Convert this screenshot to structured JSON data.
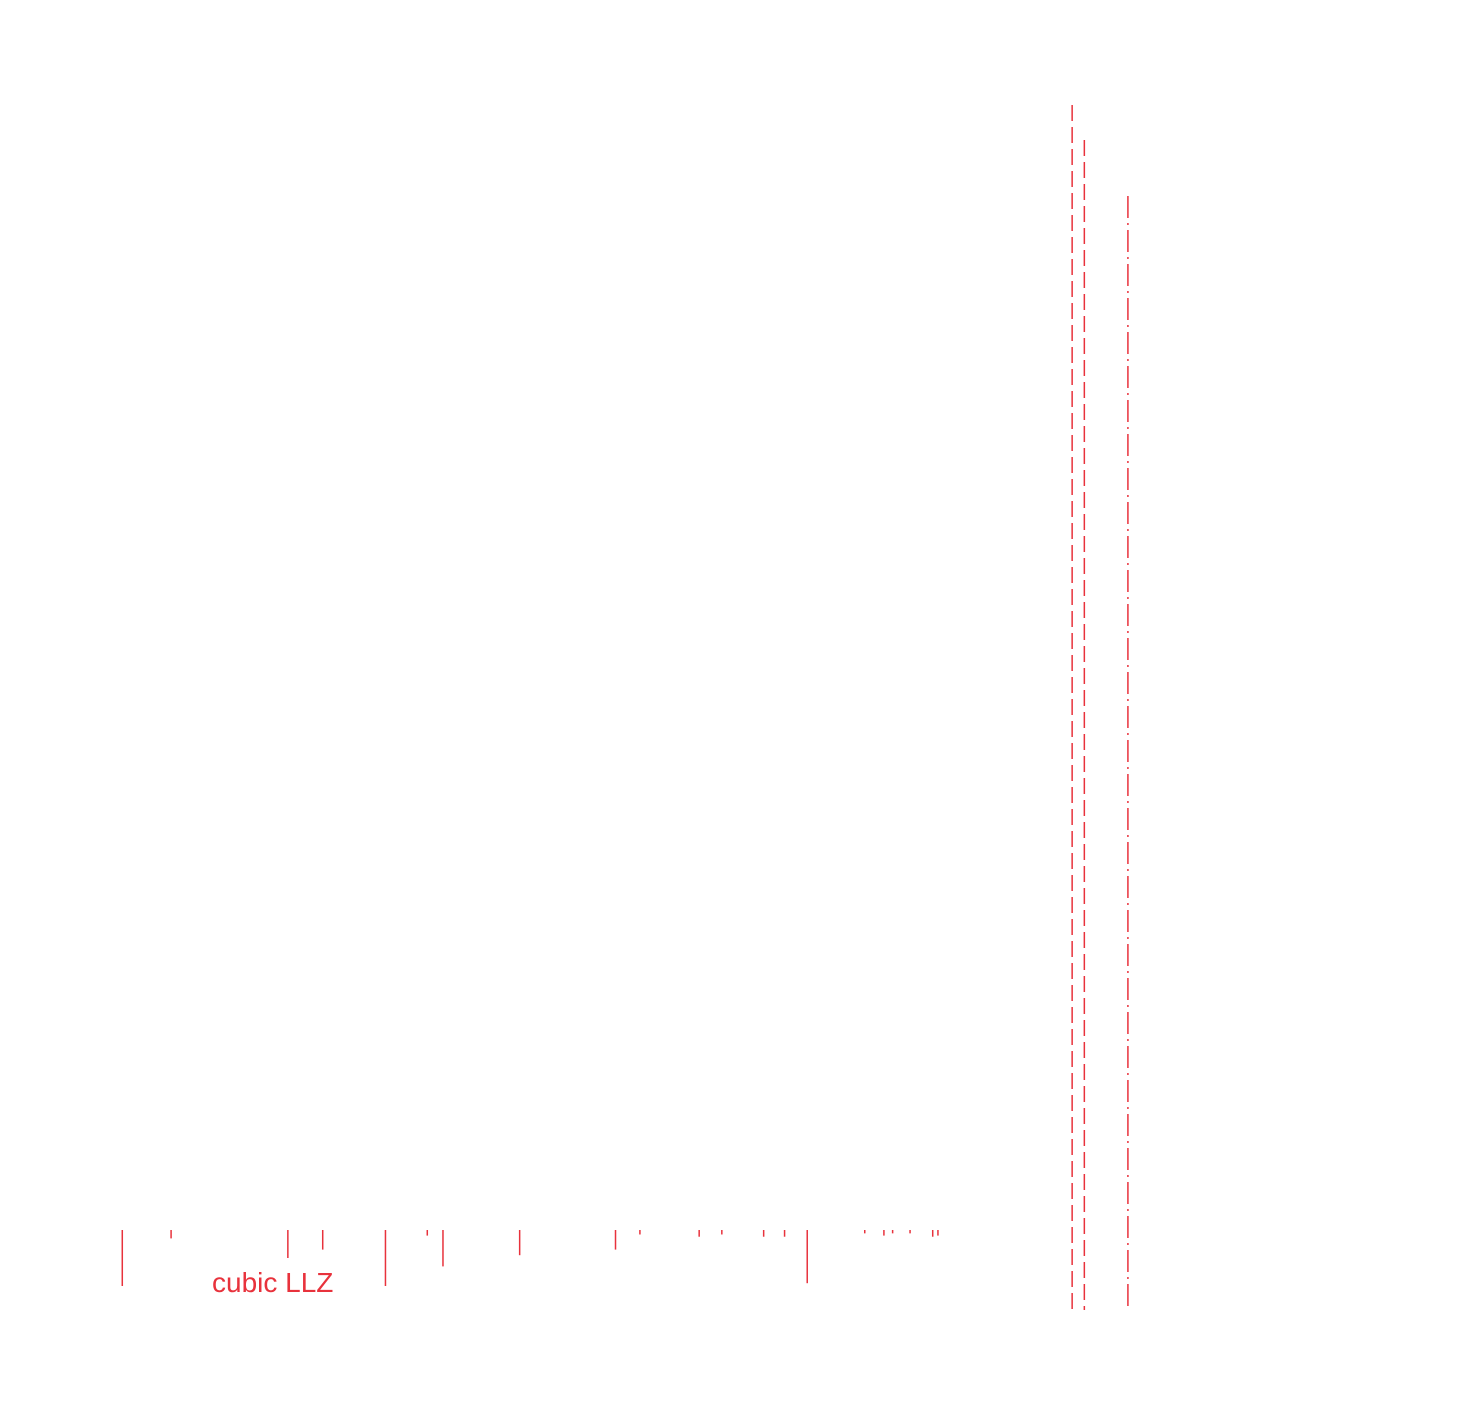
{
  "chart_data": {
    "type": "reference-pattern",
    "xlim": [
      10,
      80
    ],
    "series": [
      {
        "name": "cubic LLZ",
        "color": "#e8323c",
        "peaks": [
          {
            "x": 13.0,
            "intensity": 100
          },
          {
            "x": 15.8,
            "intensity": 15
          },
          {
            "x": 22.5,
            "intensity": 50
          },
          {
            "x": 24.5,
            "intensity": 35
          },
          {
            "x": 28.1,
            "intensity": 100
          },
          {
            "x": 30.5,
            "intensity": 10
          },
          {
            "x": 31.4,
            "intensity": 65
          },
          {
            "x": 35.8,
            "intensity": 45
          },
          {
            "x": 41.3,
            "intensity": 35
          },
          {
            "x": 42.7,
            "intensity": 8
          },
          {
            "x": 46.1,
            "intensity": 12
          },
          {
            "x": 47.4,
            "intensity": 8
          },
          {
            "x": 49.8,
            "intensity": 12
          },
          {
            "x": 51.0,
            "intensity": 12
          },
          {
            "x": 52.3,
            "intensity": 95
          },
          {
            "x": 55.6,
            "intensity": 6
          },
          {
            "x": 56.7,
            "intensity": 10
          },
          {
            "x": 57.2,
            "intensity": 6
          },
          {
            "x": 58.2,
            "intensity": 6
          },
          {
            "x": 59.5,
            "intensity": 12
          },
          {
            "x": 59.8,
            "intensity": 10
          }
        ]
      }
    ],
    "reference_lines": [
      {
        "x": 67.5,
        "style": "dashed"
      },
      {
        "x": 68.2,
        "style": "dashed"
      },
      {
        "x": 70.7,
        "style": "dash-dot"
      }
    ]
  }
}
